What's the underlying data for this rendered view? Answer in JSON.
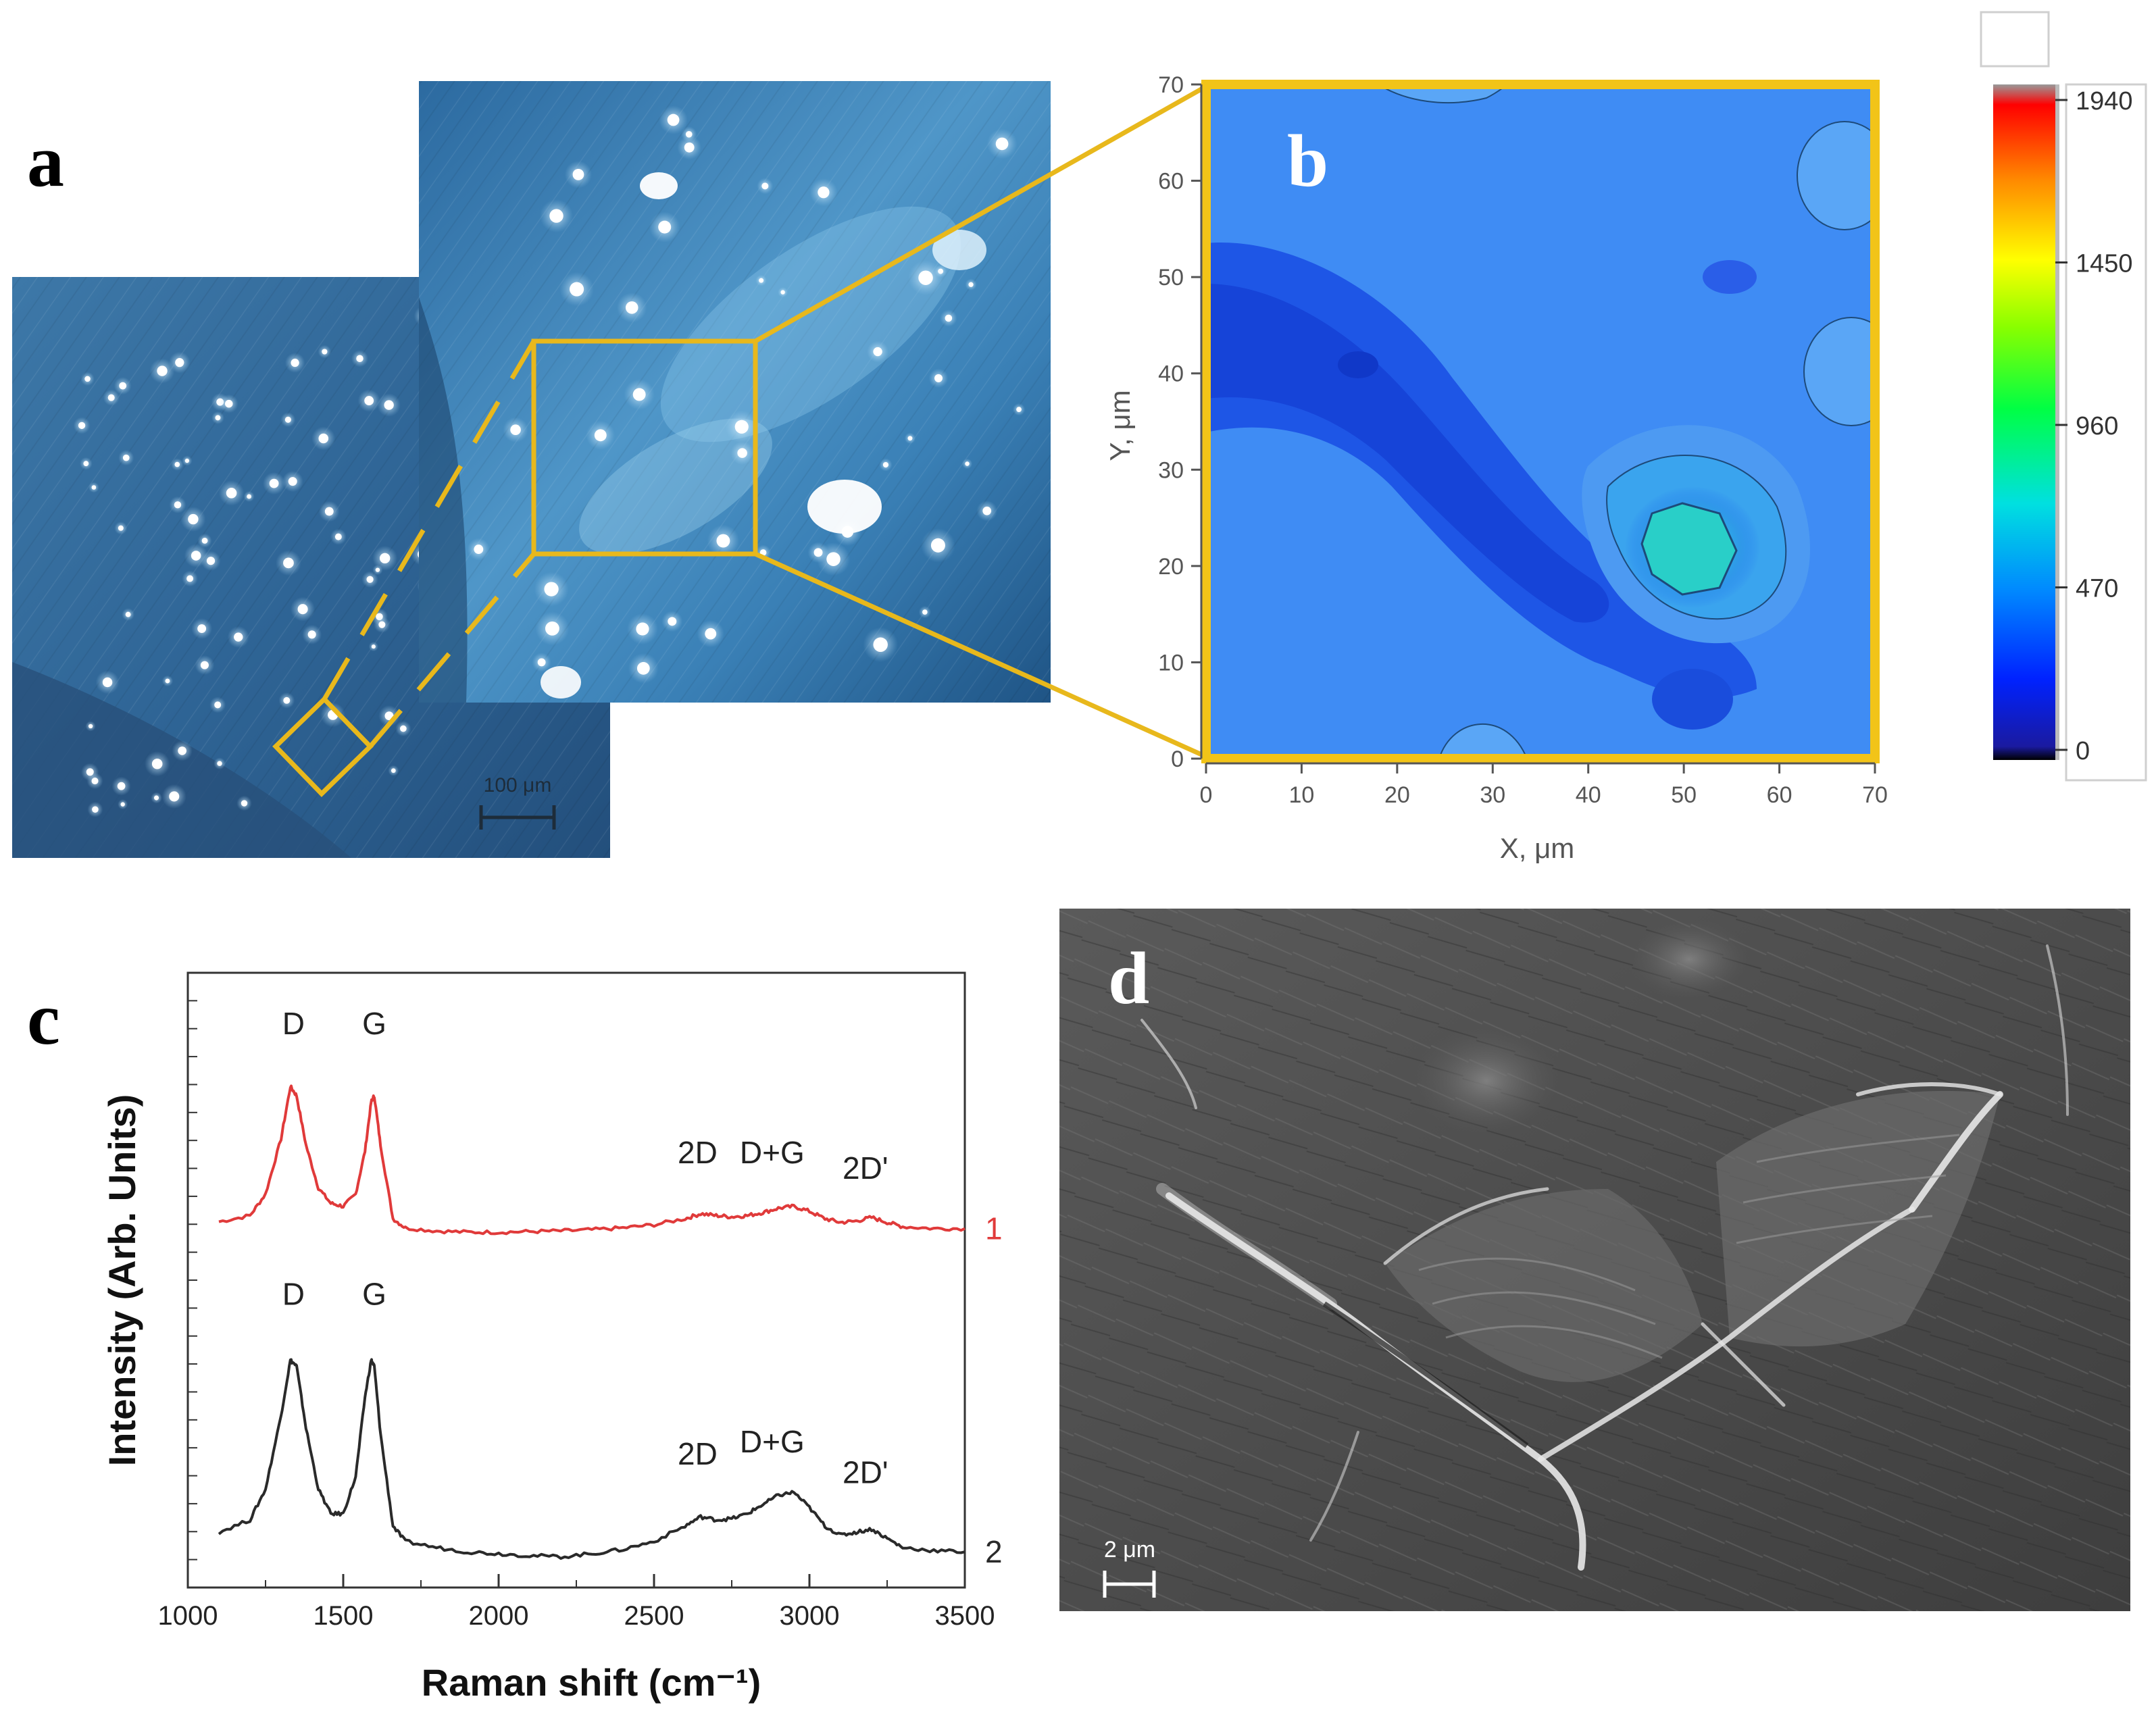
{
  "figure": {
    "panel_labels": {
      "a": "a",
      "b": "b",
      "c": "c",
      "d": "d"
    }
  },
  "panel_a": {
    "scale_bar_label": "100 μm",
    "highlight_color": "#e8b81c"
  },
  "panel_b": {
    "x_axis_label": "X, μm",
    "y_axis_label": "Y, μm",
    "x_ticks": [
      "0",
      "10",
      "20",
      "30",
      "40",
      "50",
      "60",
      "70"
    ],
    "y_ticks": [
      "0",
      "10",
      "20",
      "30",
      "40",
      "50",
      "60",
      "70"
    ],
    "colorbar_ticks": [
      "1940",
      "1450",
      "960",
      "470",
      "0"
    ],
    "frame_color": "#f2c418"
  },
  "chart_data": {
    "type": "line",
    "title": "",
    "xlabel": "Raman shift (cm⁻¹)",
    "ylabel": "Intensity (Arb. Units)",
    "xlim": [
      1000,
      3500
    ],
    "ylim": [
      0,
      1
    ],
    "x_ticks": [
      "1000",
      "1500",
      "2000",
      "2500",
      "3000",
      "3500"
    ],
    "series": [
      {
        "name": "1",
        "color": "#e03a3a",
        "x": [
          1100,
          1200,
          1250,
          1300,
          1330,
          1350,
          1380,
          1420,
          1460,
          1500,
          1540,
          1570,
          1590,
          1600,
          1620,
          1660,
          1700,
          1800,
          1900,
          2000,
          2100,
          2200,
          2300,
          2400,
          2500,
          2600,
          2650,
          2700,
          2750,
          2800,
          2850,
          2900,
          2950,
          3000,
          3050,
          3100,
          3150,
          3200,
          3250,
          3300,
          3400,
          3500
        ],
        "y": [
          0.595,
          0.605,
          0.64,
          0.73,
          0.815,
          0.8,
          0.72,
          0.65,
          0.625,
          0.62,
          0.64,
          0.71,
          0.79,
          0.8,
          0.72,
          0.6,
          0.585,
          0.58,
          0.578,
          0.578,
          0.579,
          0.58,
          0.582,
          0.585,
          0.59,
          0.6,
          0.608,
          0.605,
          0.603,
          0.605,
          0.61,
          0.617,
          0.62,
          0.612,
          0.6,
          0.594,
          0.596,
          0.602,
          0.594,
          0.587,
          0.584,
          0.584
        ],
        "peak_labels": [
          "D",
          "G",
          "2D",
          "D+G",
          "2D'"
        ]
      },
      {
        "name": "2",
        "color": "#2a2a2a",
        "x": [
          1100,
          1200,
          1250,
          1300,
          1330,
          1350,
          1380,
          1420,
          1460,
          1500,
          1540,
          1570,
          1590,
          1600,
          1620,
          1660,
          1700,
          1800,
          1900,
          2000,
          2100,
          2200,
          2300,
          2400,
          2500,
          2600,
          2650,
          2700,
          2750,
          2800,
          2850,
          2900,
          2950,
          3000,
          3050,
          3100,
          3150,
          3200,
          3250,
          3300,
          3400,
          3500
        ],
        "y": [
          0.09,
          0.11,
          0.16,
          0.28,
          0.37,
          0.36,
          0.26,
          0.16,
          0.12,
          0.12,
          0.18,
          0.31,
          0.37,
          0.36,
          0.25,
          0.1,
          0.075,
          0.065,
          0.058,
          0.055,
          0.052,
          0.05,
          0.055,
          0.062,
          0.075,
          0.1,
          0.115,
          0.11,
          0.112,
          0.12,
          0.135,
          0.15,
          0.155,
          0.13,
          0.1,
          0.085,
          0.09,
          0.095,
          0.08,
          0.065,
          0.06,
          0.058
        ],
        "peak_labels": [
          "D",
          "G",
          "2D",
          "D+G",
          "2D'"
        ]
      }
    ]
  },
  "panel_d": {
    "scale_bar_label": "2 μm"
  }
}
